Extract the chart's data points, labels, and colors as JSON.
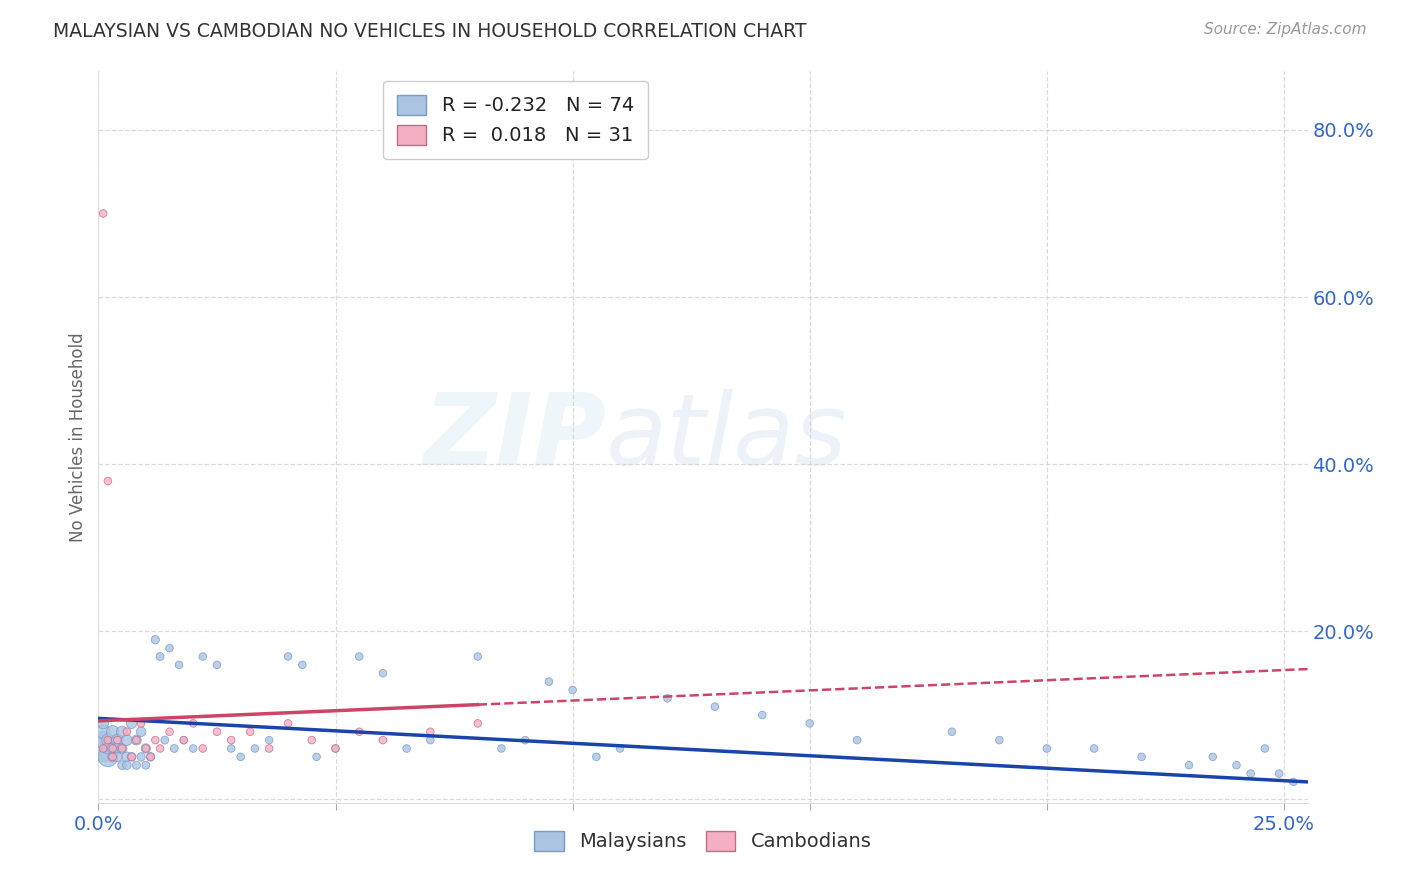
{
  "title": "MALAYSIAN VS CAMBODIAN NO VEHICLES IN HOUSEHOLD CORRELATION CHART",
  "source": "Source: ZipAtlas.com",
  "ylabel": "No Vehicles in Household",
  "xlim": [
    0.0,
    0.255
  ],
  "ylim": [
    -0.005,
    0.87
  ],
  "ytick_vals": [
    0.0,
    0.2,
    0.4,
    0.6,
    0.8
  ],
  "ytick_labels": [
    "",
    "20.0%",
    "40.0%",
    "60.0%",
    "80.0%"
  ],
  "xtick_vals": [
    0.0,
    0.05,
    0.1,
    0.15,
    0.2,
    0.25
  ],
  "xtick_labels": [
    "0.0%",
    "",
    "",
    "",
    "",
    "25.0%"
  ],
  "watermark_line1": "ZIP",
  "watermark_line2": "atlas",
  "background_color": "#ffffff",
  "grid_color": "#cccccc",
  "title_color": "#333333",
  "tick_label_color": "#3366cc",
  "ylabel_color": "#666666",
  "source_color": "#999999",
  "malaysians": {
    "name": "Malaysians",
    "R": -0.232,
    "N": 74,
    "fill_color": "#aac4e2",
    "edge_color": "#7799cc",
    "trend_color": "#1a44aa",
    "x": [
      0.001,
      0.001,
      0.001,
      0.001,
      0.002,
      0.002,
      0.002,
      0.003,
      0.003,
      0.003,
      0.004,
      0.004,
      0.004,
      0.005,
      0.005,
      0.005,
      0.006,
      0.006,
      0.006,
      0.007,
      0.007,
      0.008,
      0.008,
      0.009,
      0.009,
      0.01,
      0.01,
      0.011,
      0.012,
      0.013,
      0.014,
      0.015,
      0.016,
      0.017,
      0.018,
      0.02,
      0.022,
      0.025,
      0.028,
      0.03,
      0.033,
      0.036,
      0.04,
      0.043,
      0.046,
      0.05,
      0.055,
      0.06,
      0.065,
      0.07,
      0.08,
      0.085,
      0.09,
      0.095,
      0.1,
      0.105,
      0.11,
      0.12,
      0.13,
      0.14,
      0.15,
      0.16,
      0.18,
      0.19,
      0.2,
      0.21,
      0.22,
      0.23,
      0.235,
      0.24,
      0.243,
      0.246,
      0.249,
      0.252
    ],
    "y": [
      0.06,
      0.07,
      0.08,
      0.09,
      0.05,
      0.07,
      0.06,
      0.08,
      0.06,
      0.05,
      0.07,
      0.06,
      0.05,
      0.08,
      0.06,
      0.04,
      0.07,
      0.05,
      0.04,
      0.09,
      0.05,
      0.07,
      0.04,
      0.08,
      0.05,
      0.06,
      0.04,
      0.05,
      0.19,
      0.17,
      0.07,
      0.18,
      0.06,
      0.16,
      0.07,
      0.06,
      0.17,
      0.16,
      0.06,
      0.05,
      0.06,
      0.07,
      0.17,
      0.16,
      0.05,
      0.06,
      0.17,
      0.15,
      0.06,
      0.07,
      0.17,
      0.06,
      0.07,
      0.14,
      0.13,
      0.05,
      0.06,
      0.12,
      0.11,
      0.1,
      0.09,
      0.07,
      0.08,
      0.07,
      0.06,
      0.06,
      0.05,
      0.04,
      0.05,
      0.04,
      0.03,
      0.06,
      0.03,
      0.02
    ],
    "sizes": [
      350,
      150,
      100,
      60,
      200,
      80,
      60,
      80,
      60,
      50,
      70,
      55,
      45,
      65,
      50,
      40,
      60,
      48,
      38,
      55,
      40,
      50,
      35,
      48,
      35,
      45,
      32,
      38,
      35,
      33,
      32,
      30,
      32,
      30,
      30,
      30,
      30,
      30,
      30,
      30,
      30,
      30,
      30,
      30,
      30,
      30,
      30,
      30,
      30,
      30,
      30,
      30,
      30,
      30,
      30,
      30,
      30,
      30,
      30,
      30,
      30,
      30,
      30,
      30,
      30,
      30,
      30,
      30,
      30,
      30,
      30,
      30,
      30,
      30
    ]
  },
  "cambodians": {
    "name": "Cambodians",
    "R": 0.018,
    "N": 31,
    "fill_color": "#f2b0c2",
    "edge_color": "#cc6688",
    "trend_color": "#cc4466",
    "x": [
      0.001,
      0.001,
      0.002,
      0.002,
      0.003,
      0.003,
      0.004,
      0.005,
      0.006,
      0.007,
      0.008,
      0.009,
      0.01,
      0.011,
      0.012,
      0.013,
      0.015,
      0.018,
      0.02,
      0.022,
      0.025,
      0.028,
      0.032,
      0.036,
      0.04,
      0.045,
      0.05,
      0.055,
      0.06,
      0.07,
      0.08
    ],
    "y": [
      0.7,
      0.06,
      0.38,
      0.07,
      0.06,
      0.05,
      0.07,
      0.06,
      0.08,
      0.05,
      0.07,
      0.09,
      0.06,
      0.05,
      0.07,
      0.06,
      0.08,
      0.07,
      0.09,
      0.06,
      0.08,
      0.07,
      0.08,
      0.06,
      0.09,
      0.07,
      0.06,
      0.08,
      0.07,
      0.08,
      0.09
    ],
    "sizes": [
      30,
      30,
      30,
      30,
      30,
      30,
      30,
      30,
      30,
      30,
      30,
      30,
      30,
      30,
      30,
      30,
      30,
      30,
      30,
      30,
      30,
      30,
      30,
      30,
      30,
      30,
      30,
      30,
      30,
      30,
      30
    ]
  }
}
